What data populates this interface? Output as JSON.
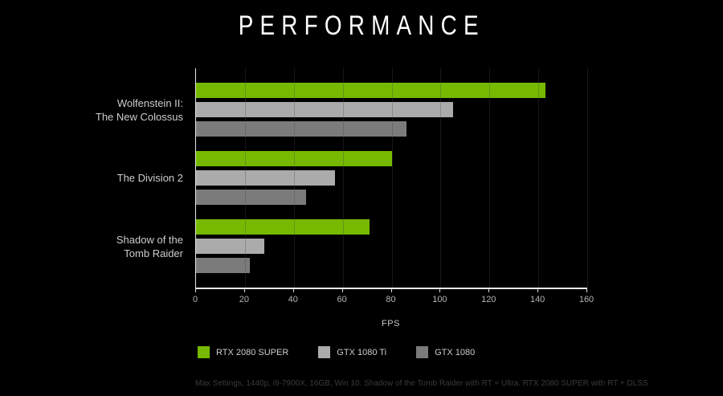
{
  "page": {
    "background": "#000000"
  },
  "chart_data": {
    "type": "bar",
    "orientation": "horizontal",
    "title": "PERFORMANCE",
    "categories": [
      "Wolfenstein II: The New Colossus",
      "The Division 2",
      "Shadow of the Tomb Raider"
    ],
    "category_label_lines": [
      [
        "Wolfenstein II:",
        "The New Colossus"
      ],
      [
        "The Division 2"
      ],
      [
        "Shadow of the",
        "Tomb Raider"
      ]
    ],
    "series": [
      {
        "name": "RTX 2080 SUPER",
        "color": "#76B900",
        "values": [
          143,
          80,
          71
        ]
      },
      {
        "name": "GTX 1080 Ti",
        "color": "#ABABAB",
        "values": [
          105,
          57,
          28
        ]
      },
      {
        "name": "GTX 1080",
        "color": "#7B7B7B",
        "values": [
          86,
          45,
          22
        ]
      }
    ],
    "xlabel": "FPS",
    "xlim": [
      0,
      160
    ],
    "xticks": [
      0,
      20,
      40,
      60,
      80,
      100,
      120,
      140,
      160
    ],
    "grid": true,
    "legend_position": "bottom",
    "footnote": "Max Settings, 1440p, i9-7900X, 16GB, Win 10. Shadow of the Tomb Raider with RT = Ultra. RTX 2080 SUPER with RT + DLSS"
  }
}
